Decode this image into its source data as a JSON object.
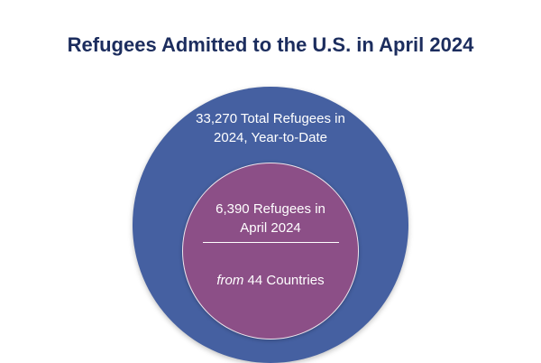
{
  "title": "Refugees Admitted to the U.S. in April 2024",
  "colors": {
    "title": "#1c2d5e",
    "outer_circle": "#4560a1",
    "inner_circle": "#8c4f87",
    "text": "#ffffff"
  },
  "outer": {
    "line1": "33,270 Total Refugees in",
    "line2": "2024, Year-to-Date"
  },
  "inner": {
    "line1": "6,390 Refugees in",
    "line2": "April 2024",
    "countries_prefix": "from",
    "countries_rest": " 44 Countries"
  }
}
